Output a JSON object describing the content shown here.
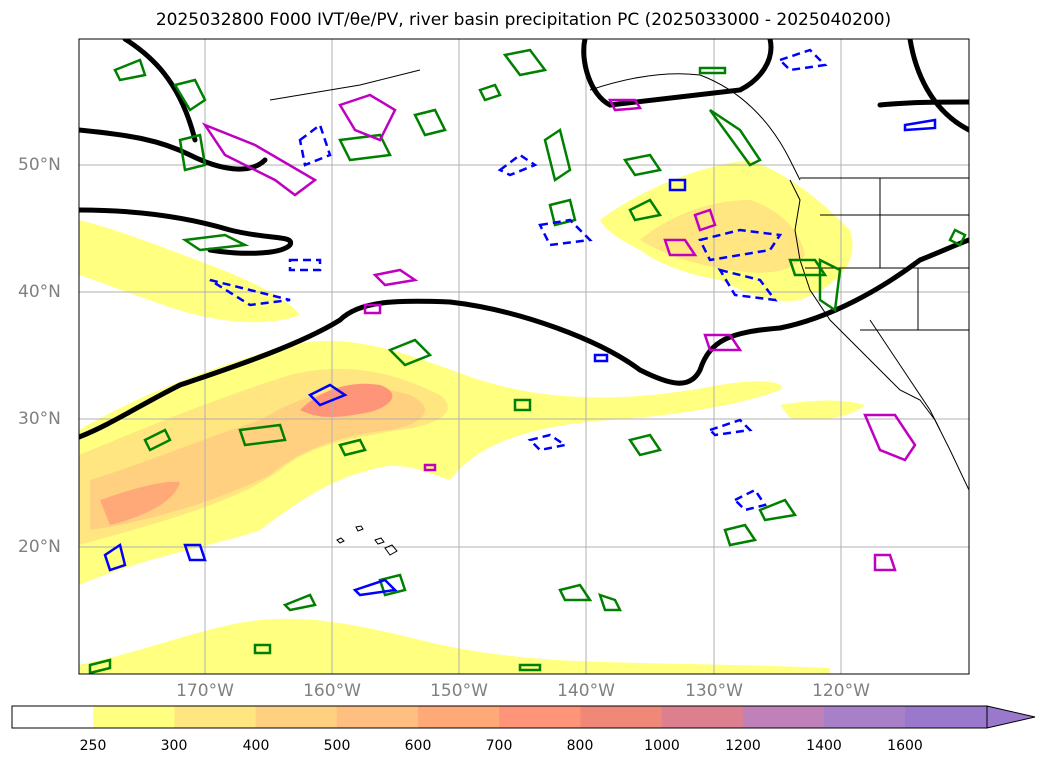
{
  "title": "2025032800 F000 IVT/θe/PV, river basin precipitation PC (2025033000 - 2025040200)",
  "latitude_labels": [
    "50°N",
    "40°N",
    "30°N",
    "20°N"
  ],
  "longitude_labels": [
    "170°W",
    "160°W",
    "150°W",
    "140°W",
    "130°W",
    "120°W"
  ],
  "colorbar": {
    "ticks": [
      "250",
      "300",
      "400",
      "500",
      "600",
      "700",
      "800",
      "1000",
      "1200",
      "1400",
      "1600"
    ],
    "colors": [
      "#ffffff",
      "#ffff80",
      "#ffe680",
      "#ffd080",
      "#ffbf80",
      "#ffa878",
      "#ff9578",
      "#f08878",
      "#dc8090",
      "#c080b8",
      "#a880c8",
      "#9a78cc"
    ],
    "extend": "max"
  },
  "colors": {
    "ivt_contour": "#000000",
    "theta_e_positive": "#008000",
    "theta_e_negative": "#0000ff",
    "pv": "#c000c0",
    "grid": "#b0b0b0",
    "tick_label": "#808080"
  }
}
